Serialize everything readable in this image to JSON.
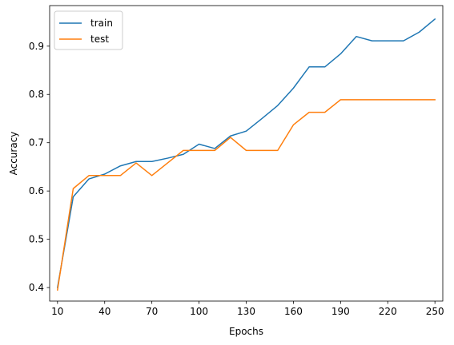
{
  "chart_data": {
    "type": "line",
    "xlabel": "Epochs",
    "ylabel": "Accuracy",
    "xlim": [
      5,
      255
    ],
    "ylim": [
      0.372,
      0.984
    ],
    "xticks": [
      10,
      40,
      70,
      100,
      130,
      160,
      190,
      220,
      250
    ],
    "yticks": [
      0.4,
      0.5,
      0.6,
      0.7,
      0.8,
      0.9
    ],
    "ytick_labels": [
      "0.4",
      "0.5",
      "0.6",
      "0.7",
      "0.8",
      "0.9"
    ],
    "grid": false,
    "legend_position": "top-left",
    "x": [
      10,
      20,
      30,
      40,
      50,
      60,
      70,
      80,
      90,
      100,
      110,
      120,
      130,
      140,
      150,
      160,
      170,
      180,
      190,
      200,
      210,
      220,
      230,
      240,
      250
    ],
    "series": [
      {
        "name": "train",
        "color": "#1f77b4",
        "values": [
          0.4,
          0.588,
          0.625,
          0.635,
          0.652,
          0.661,
          0.661,
          0.668,
          0.676,
          0.697,
          0.688,
          0.714,
          0.724,
          0.75,
          0.777,
          0.813,
          0.857,
          0.857,
          0.884,
          0.92,
          0.911,
          0.911,
          0.911,
          0.929,
          0.956
        ]
      },
      {
        "name": "test",
        "color": "#ff7f0e",
        "values": [
          0.395,
          0.605,
          0.632,
          0.632,
          0.632,
          0.658,
          0.632,
          0.658,
          0.684,
          0.684,
          0.684,
          0.711,
          0.684,
          0.684,
          0.684,
          0.737,
          0.763,
          0.763,
          0.789,
          0.789,
          0.789,
          0.789,
          0.789,
          0.789,
          0.789
        ]
      }
    ]
  }
}
